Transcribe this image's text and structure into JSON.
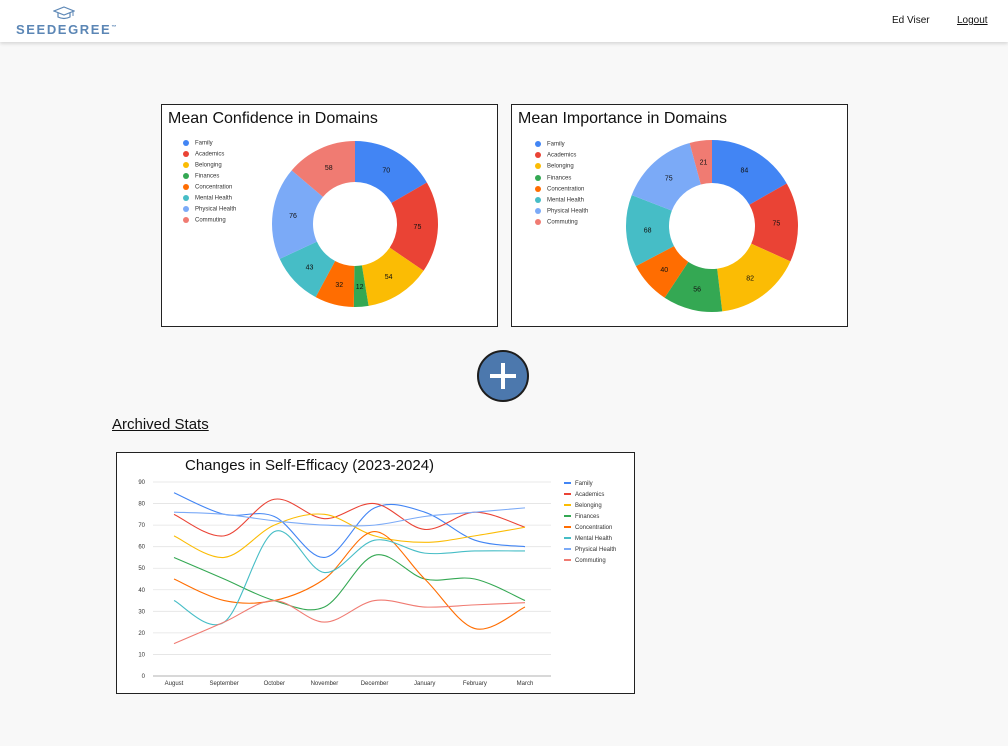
{
  "header": {
    "logo_text": "SEEDEGREE",
    "logo_tm": "™",
    "user_name": "Ed Viser",
    "logout_label": "Logout"
  },
  "domains": [
    "Family",
    "Academics",
    "Belonging",
    "Finances",
    "Concentration",
    "Mental Health",
    "Physical Health",
    "Commuting"
  ],
  "colors": {
    "Family": "#4285f4",
    "Academics": "#ea4335",
    "Belonging": "#fbbc04",
    "Finances": "#34a853",
    "Concentration": "#ff6d01",
    "Mental Health": "#46bdc6",
    "Physical Health": "#7baaf7",
    "Commuting": "#f07b72",
    "accent_button": "#4c78ad"
  },
  "add_button": {
    "icon": "plus-icon"
  },
  "archived": {
    "heading": "Archived Stats"
  },
  "chart_data": [
    {
      "type": "pie",
      "title": "Mean Confidence in Domains",
      "donut": true,
      "legend_position": "left",
      "categories": [
        "Family",
        "Academics",
        "Belonging",
        "Finances",
        "Concentration",
        "Mental Health",
        "Physical Health",
        "Commuting"
      ],
      "values": [
        70,
        75,
        54,
        12,
        32,
        43,
        76,
        58
      ]
    },
    {
      "type": "pie",
      "title": "Mean Importance in Domains",
      "donut": true,
      "legend_position": "left",
      "categories": [
        "Family",
        "Academics",
        "Belonging",
        "Finances",
        "Concentration",
        "Mental Health",
        "Physical Health",
        "Commuting"
      ],
      "values": [
        84,
        75,
        82,
        56,
        40,
        68,
        75,
        21
      ]
    },
    {
      "type": "line",
      "title": "Changes in Self-Efficacy (2023-2024)",
      "legend_position": "right",
      "grid": true,
      "x": [
        "August",
        "September",
        "October",
        "November",
        "December",
        "January",
        "February",
        "March"
      ],
      "ylim": [
        0,
        90
      ],
      "yticks": [
        0,
        10,
        20,
        30,
        40,
        50,
        60,
        70,
        80,
        90
      ],
      "series": [
        {
          "name": "Family",
          "values": [
            85,
            75,
            74,
            55,
            78,
            76,
            63,
            60
          ]
        },
        {
          "name": "Academics",
          "values": [
            75,
            65,
            82,
            73,
            80,
            68,
            76,
            69
          ]
        },
        {
          "name": "Belonging",
          "values": [
            65,
            55,
            70,
            75,
            65,
            62,
            65,
            69
          ]
        },
        {
          "name": "Finances",
          "values": [
            55,
            45,
            35,
            32,
            56,
            45,
            45,
            35
          ]
        },
        {
          "name": "Concentration",
          "values": [
            45,
            35,
            35,
            45,
            67,
            45,
            22,
            32
          ]
        },
        {
          "name": "Mental Health",
          "values": [
            35,
            25,
            67,
            48,
            63,
            57,
            58,
            58
          ]
        },
        {
          "name": "Physical Health",
          "values": [
            76,
            75,
            72,
            70,
            70,
            74,
            76,
            78
          ]
        },
        {
          "name": "Commuting",
          "values": [
            15,
            25,
            35,
            25,
            35,
            32,
            33,
            34
          ]
        }
      ]
    }
  ]
}
